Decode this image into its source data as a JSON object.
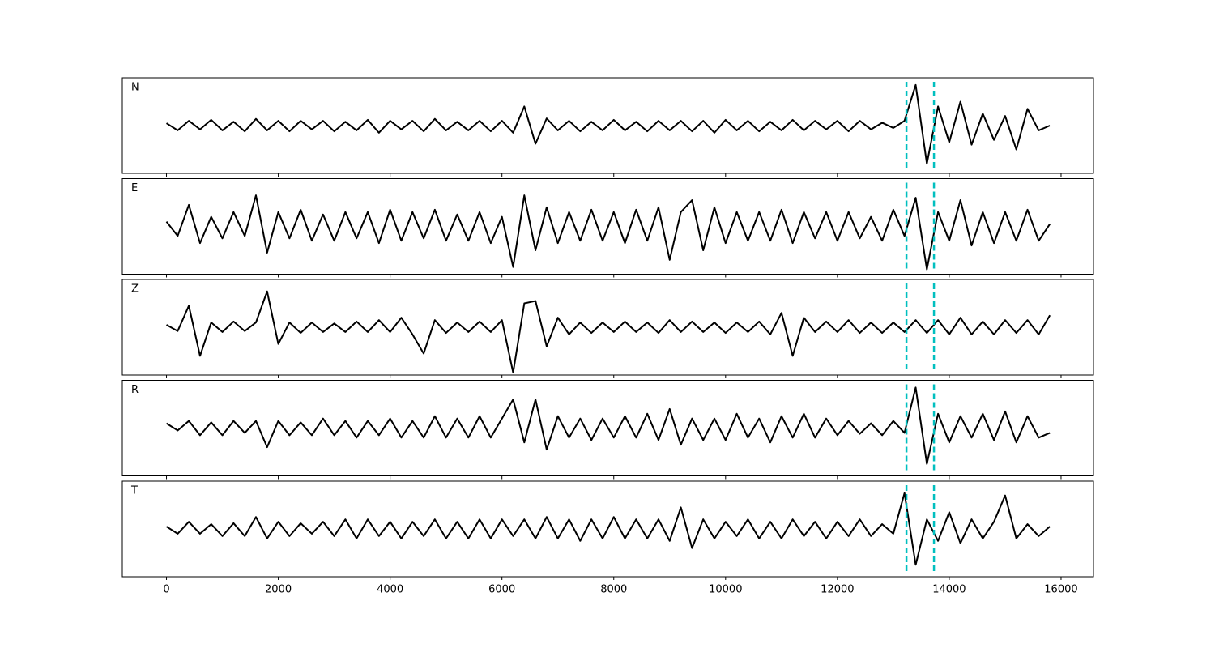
{
  "chart_data": {
    "type": "line",
    "x": [
      0,
      200,
      400,
      600,
      800,
      1000,
      1200,
      1400,
      1600,
      1800,
      2000,
      2200,
      2400,
      2600,
      2800,
      3000,
      3200,
      3400,
      3600,
      3800,
      4000,
      4200,
      4400,
      4600,
      4800,
      5000,
      5200,
      5400,
      5600,
      5800,
      6000,
      6200,
      6400,
      6600,
      6800,
      7000,
      7200,
      7400,
      7600,
      7800,
      8000,
      8200,
      8400,
      8600,
      8800,
      9000,
      9200,
      9400,
      9600,
      9800,
      10000,
      10200,
      10400,
      10600,
      10800,
      11000,
      11200,
      11400,
      11600,
      11800,
      12000,
      12200,
      12400,
      12600,
      12800,
      13000,
      13200,
      13400,
      13600,
      13800,
      14000,
      14200,
      14400,
      14600,
      14800,
      15000,
      15200,
      15400,
      15600,
      15800
    ],
    "xlim": [
      -790,
      16580
    ],
    "xticks": [
      0,
      2000,
      4000,
      6000,
      8000,
      10000,
      12000,
      14000,
      16000
    ],
    "ylim": [
      -1,
      1
    ],
    "line_color": "#000000",
    "vlines": [
      13235,
      13727
    ],
    "vline_color": "#00bfbf",
    "series": [
      {
        "name": "N",
        "values": [
          0.05,
          -0.1,
          0.1,
          -0.08,
          0.12,
          -0.1,
          0.08,
          -0.12,
          0.14,
          -0.1,
          0.1,
          -0.12,
          0.1,
          -0.08,
          0.1,
          -0.12,
          0.08,
          -0.1,
          0.12,
          -0.15,
          0.1,
          -0.08,
          0.1,
          -0.12,
          0.14,
          -0.1,
          0.08,
          -0.1,
          0.1,
          -0.12,
          0.1,
          -0.15,
          0.4,
          -0.38,
          0.15,
          -0.1,
          0.1,
          -0.12,
          0.08,
          -0.1,
          0.12,
          -0.1,
          0.08,
          -0.12,
          0.1,
          -0.1,
          0.1,
          -0.12,
          0.1,
          -0.15,
          0.12,
          -0.1,
          0.1,
          -0.12,
          0.08,
          -0.1,
          0.12,
          -0.1,
          0.1,
          -0.08,
          0.1,
          -0.12,
          0.1,
          -0.08,
          0.06,
          -0.05,
          0.1,
          0.85,
          -0.8,
          0.4,
          -0.35,
          0.5,
          -0.4,
          0.25,
          -0.3,
          0.2,
          -0.5,
          0.35,
          -0.1,
          0.0
        ]
      },
      {
        "name": "E",
        "values": [
          0.1,
          -0.2,
          0.45,
          -0.35,
          0.2,
          -0.25,
          0.3,
          -0.2,
          0.65,
          -0.55,
          0.3,
          -0.25,
          0.35,
          -0.3,
          0.25,
          -0.3,
          0.3,
          -0.25,
          0.3,
          -0.35,
          0.35,
          -0.3,
          0.3,
          -0.25,
          0.35,
          -0.3,
          0.25,
          -0.3,
          0.3,
          -0.35,
          0.2,
          -0.85,
          0.65,
          -0.5,
          0.4,
          -0.35,
          0.3,
          -0.3,
          0.35,
          -0.3,
          0.3,
          -0.35,
          0.35,
          -0.3,
          0.4,
          -0.7,
          0.3,
          0.55,
          -0.5,
          0.4,
          -0.35,
          0.3,
          -0.3,
          0.3,
          -0.3,
          0.35,
          -0.35,
          0.3,
          -0.25,
          0.3,
          -0.3,
          0.3,
          -0.25,
          0.2,
          -0.3,
          0.35,
          -0.2,
          0.6,
          -0.9,
          0.3,
          -0.3,
          0.55,
          -0.4,
          0.3,
          -0.35,
          0.3,
          -0.3,
          0.35,
          -0.3,
          0.05
        ]
      },
      {
        "name": "Z",
        "values": [
          0.05,
          -0.08,
          0.45,
          -0.6,
          0.1,
          -0.1,
          0.12,
          -0.08,
          0.1,
          0.75,
          -0.35,
          0.1,
          -0.12,
          0.1,
          -0.1,
          0.08,
          -0.1,
          0.12,
          -0.1,
          0.15,
          -0.1,
          0.2,
          -0.15,
          -0.55,
          0.15,
          -0.12,
          0.1,
          -0.1,
          0.12,
          -0.1,
          0.15,
          -0.95,
          0.5,
          0.55,
          -0.4,
          0.2,
          -0.15,
          0.1,
          -0.12,
          0.1,
          -0.1,
          0.12,
          -0.1,
          0.1,
          -0.12,
          0.15,
          -0.1,
          0.12,
          -0.1,
          0.1,
          -0.12,
          0.1,
          -0.1,
          0.12,
          -0.15,
          0.3,
          -0.6,
          0.2,
          -0.1,
          0.12,
          -0.1,
          0.15,
          -0.12,
          0.1,
          -0.12,
          0.1,
          -0.1,
          0.15,
          -0.12,
          0.15,
          -0.15,
          0.2,
          -0.15,
          0.12,
          -0.15,
          0.15,
          -0.12,
          0.15,
          -0.15,
          0.25
        ]
      },
      {
        "name": "R",
        "values": [
          0.1,
          -0.05,
          0.15,
          -0.15,
          0.12,
          -0.15,
          0.15,
          -0.1,
          0.15,
          -0.4,
          0.15,
          -0.15,
          0.12,
          -0.15,
          0.2,
          -0.15,
          0.15,
          -0.2,
          0.15,
          -0.15,
          0.2,
          -0.2,
          0.15,
          -0.2,
          0.25,
          -0.2,
          0.2,
          -0.2,
          0.25,
          -0.2,
          0.2,
          0.6,
          -0.3,
          0.6,
          -0.45,
          0.25,
          -0.2,
          0.2,
          -0.25,
          0.2,
          -0.2,
          0.25,
          -0.2,
          0.3,
          -0.25,
          0.4,
          -0.35,
          0.2,
          -0.25,
          0.2,
          -0.25,
          0.3,
          -0.2,
          0.2,
          -0.3,
          0.25,
          -0.2,
          0.3,
          -0.2,
          0.2,
          -0.15,
          0.15,
          -0.12,
          0.1,
          -0.15,
          0.15,
          -0.1,
          0.85,
          -0.75,
          0.3,
          -0.3,
          0.25,
          -0.2,
          0.3,
          -0.25,
          0.35,
          -0.3,
          0.25,
          -0.2,
          -0.1
        ]
      },
      {
        "name": "T",
        "values": [
          0.05,
          -0.1,
          0.15,
          -0.1,
          0.1,
          -0.15,
          0.12,
          -0.15,
          0.25,
          -0.2,
          0.15,
          -0.15,
          0.12,
          -0.1,
          0.15,
          -0.15,
          0.2,
          -0.2,
          0.2,
          -0.15,
          0.15,
          -0.2,
          0.15,
          -0.15,
          0.2,
          -0.2,
          0.15,
          -0.2,
          0.2,
          -0.2,
          0.2,
          -0.15,
          0.2,
          -0.2,
          0.25,
          -0.2,
          0.2,
          -0.25,
          0.2,
          -0.2,
          0.25,
          -0.2,
          0.2,
          -0.2,
          0.2,
          -0.25,
          0.45,
          -0.4,
          0.2,
          -0.2,
          0.15,
          -0.15,
          0.2,
          -0.2,
          0.15,
          -0.2,
          0.2,
          -0.15,
          0.15,
          -0.2,
          0.15,
          -0.15,
          0.2,
          -0.15,
          0.1,
          -0.1,
          0.75,
          -0.75,
          0.2,
          -0.25,
          0.35,
          -0.3,
          0.2,
          -0.2,
          0.15,
          0.7,
          -0.2,
          0.1,
          -0.15,
          0.05
        ]
      }
    ]
  }
}
